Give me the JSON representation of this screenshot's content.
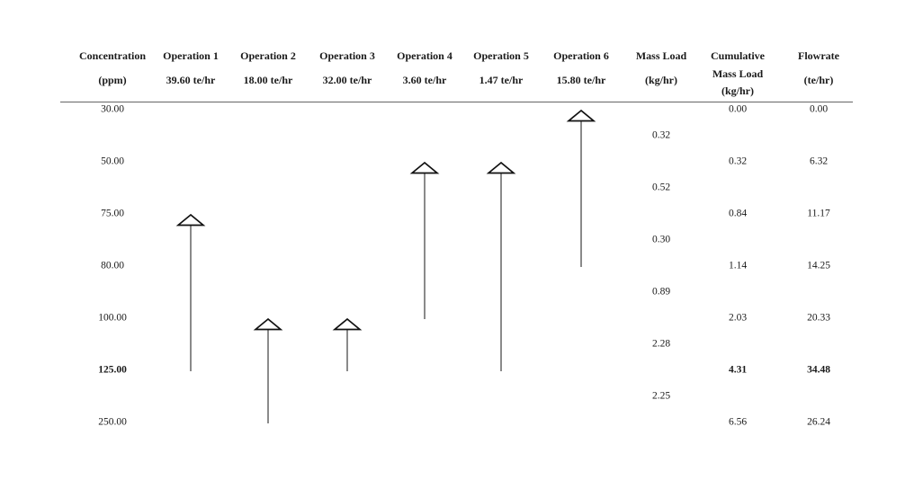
{
  "diagram": {
    "header": {
      "columns": [
        {
          "id": "concentration",
          "lines": [
            "Concentration",
            "(ppm)"
          ]
        },
        {
          "id": "operation-1",
          "lines": [
            "Operation 1",
            "39.60 te/hr"
          ]
        },
        {
          "id": "operation-2",
          "lines": [
            "Operation 2",
            "18.00 te/hr"
          ]
        },
        {
          "id": "operation-3",
          "lines": [
            "Operation 3",
            "32.00 te/hr"
          ]
        },
        {
          "id": "operation-4",
          "lines": [
            "Operation 4",
            "3.60 te/hr"
          ]
        },
        {
          "id": "operation-5",
          "lines": [
            "Operation 5",
            "1.47 te/hr"
          ]
        },
        {
          "id": "operation-6",
          "lines": [
            "Operation 6",
            "15.80 te/hr"
          ]
        },
        {
          "id": "mass-load",
          "lines": [
            "Mass Load",
            "(kg/hr)"
          ]
        },
        {
          "id": "cumulative-mass-load",
          "lines": [
            "Cumulative",
            "Mass Load",
            "(kg/hr)"
          ]
        },
        {
          "id": "flowrate",
          "lines": [
            "Flowrate",
            "(te/hr)"
          ]
        }
      ]
    },
    "rows": [
      {
        "concentration": "30.00",
        "cumulative": "0.00",
        "flowrate": "0.00",
        "bold": false
      },
      {
        "concentration": "50.00",
        "cumulative": "0.32",
        "flowrate": "6.32",
        "bold": false
      },
      {
        "concentration": "75.00",
        "cumulative": "0.84",
        "flowrate": "11.17",
        "bold": false
      },
      {
        "concentration": "80.00",
        "cumulative": "1.14",
        "flowrate": "14.25",
        "bold": false
      },
      {
        "concentration": "100.00",
        "cumulative": "2.03",
        "flowrate": "20.33",
        "bold": false
      },
      {
        "concentration": "125.00",
        "cumulative": "4.31",
        "flowrate": "34.48",
        "bold": true
      },
      {
        "concentration": "250.00",
        "cumulative": "6.56",
        "flowrate": "26.24",
        "bold": false
      }
    ],
    "interval_mass_loads": [
      "0.32",
      "0.52",
      "0.30",
      "0.89",
      "2.28",
      "2.25"
    ],
    "arrows": [
      {
        "operation": "operation-1",
        "col": 1,
        "from_row": 5,
        "to_row": 2
      },
      {
        "operation": "operation-2",
        "col": 2,
        "from_row": 6,
        "to_row": 4
      },
      {
        "operation": "operation-3",
        "col": 3,
        "from_row": 5,
        "to_row": 4
      },
      {
        "operation": "operation-4",
        "col": 4,
        "from_row": 4,
        "to_row": 1
      },
      {
        "operation": "operation-5",
        "col": 5,
        "from_row": 5,
        "to_row": 1
      },
      {
        "operation": "operation-6",
        "col": 6,
        "from_row": 3,
        "to_row": 0
      }
    ],
    "colors": {
      "background": "#ffffff",
      "text": "#1a1a1a",
      "rule": "#666666",
      "arrow_stem": "#3d3d3d",
      "arrow_outline": "#111111",
      "arrow_fill": "#ffffff"
    }
  },
  "chart_data": {
    "type": "table",
    "description": "Concentration interval diagram: six water-using operations drawn as upward arrows spanning concentration intervals, with interval mass loads, cumulative mass loads and flowrates",
    "columns": [
      "Concentration (ppm)",
      "Operation 1 39.60 te/hr",
      "Operation 2 18.00 te/hr",
      "Operation 3 32.00 te/hr",
      "Operation 4 3.60 te/hr",
      "Operation 5 1.47 te/hr",
      "Operation 6 15.80 te/hr",
      "Mass Load (kg/hr)",
      "Cumulative Mass Load (kg/hr)",
      "Flowrate (te/hr)"
    ],
    "concentration_levels_ppm": [
      30.0,
      50.0,
      75.0,
      80.0,
      100.0,
      125.0,
      250.0
    ],
    "cumulative_mass_load_kg_hr": [
      0.0,
      0.32,
      0.84,
      1.14,
      2.03,
      4.31,
      6.56
    ],
    "flowrate_te_hr": [
      0.0,
      6.32,
      11.17,
      14.25,
      20.33,
      34.48,
      26.24
    ],
    "interval_mass_load_kg_hr": [
      0.32,
      0.52,
      0.3,
      0.89,
      2.28,
      2.25
    ],
    "operations": [
      {
        "name": "Operation 1",
        "flowrate": "39.60 te/hr",
        "from_ppm": 125.0,
        "to_ppm": 75.0
      },
      {
        "name": "Operation 2",
        "flowrate": "18.00 te/hr",
        "from_ppm": 250.0,
        "to_ppm": 100.0
      },
      {
        "name": "Operation 3",
        "flowrate": "32.00 te/hr",
        "from_ppm": 125.0,
        "to_ppm": 100.0
      },
      {
        "name": "Operation 4",
        "flowrate": "3.60 te/hr",
        "from_ppm": 100.0,
        "to_ppm": 50.0
      },
      {
        "name": "Operation 5",
        "flowrate": "1.47 te/hr",
        "from_ppm": 125.0,
        "to_ppm": 50.0
      },
      {
        "name": "Operation 6",
        "flowrate": "15.80 te/hr",
        "from_ppm": 80.0,
        "to_ppm": 30.0
      }
    ],
    "emphasized_row": {
      "concentration": 125.0,
      "cumulative_mass_load": 4.31,
      "flowrate": 34.48
    },
    "legend_position": "none",
    "grid": false
  }
}
